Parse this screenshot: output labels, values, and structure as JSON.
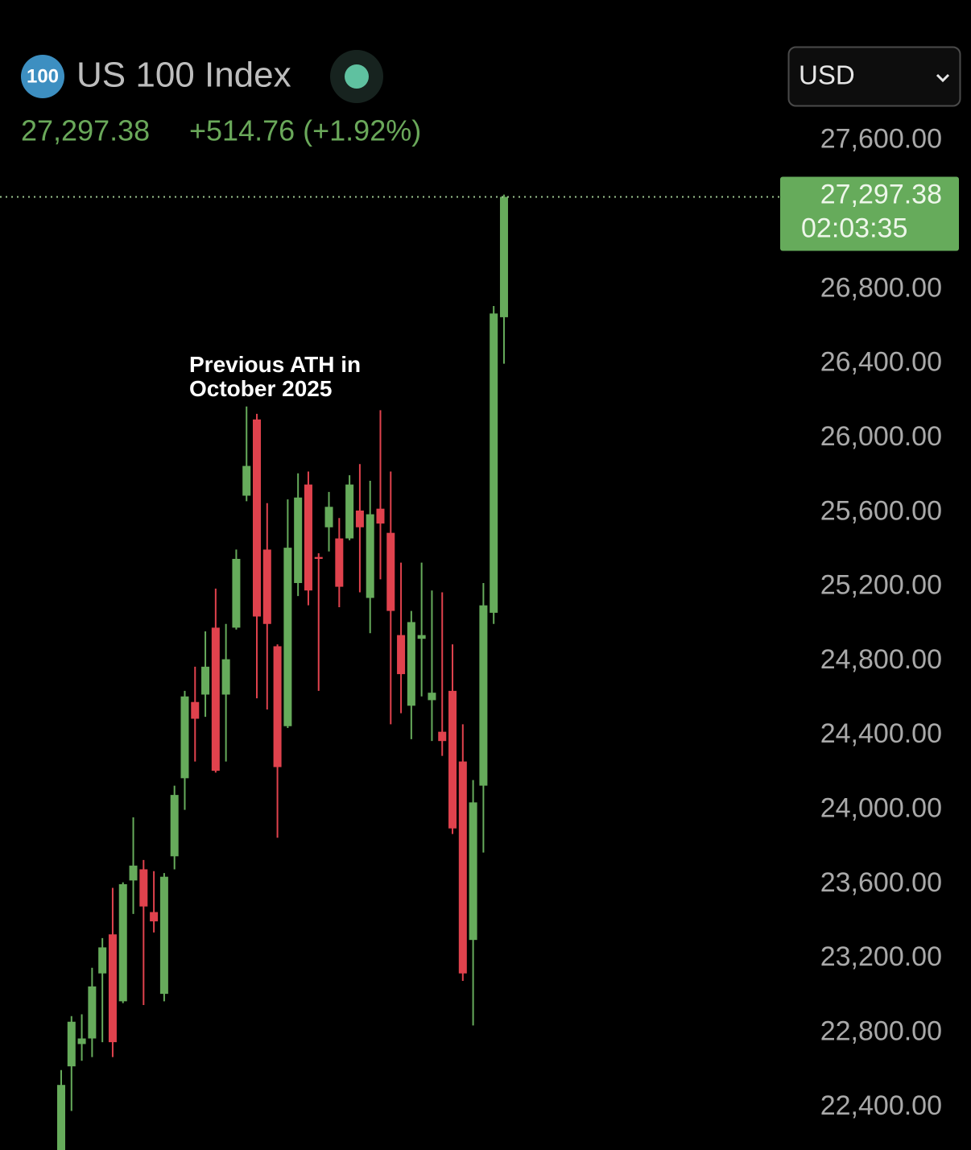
{
  "chart_data": {
    "type": "candlestick",
    "badge": "100",
    "title": "US 100 Index",
    "last_price": {
      "value": 27297.38,
      "label": "27,297.38"
    },
    "change_label": "+514.76 (+1.92%)",
    "countdown": "02:03:35",
    "currency": "USD",
    "annotation": [
      "Previous ATH in",
      "October 2025"
    ],
    "up_color": "#66ab5b",
    "down_color": "#e0424d",
    "categories": [
      null,
      null,
      null,
      null,
      null,
      null,
      null,
      null,
      null,
      null,
      null,
      null,
      null,
      null,
      null,
      null,
      null,
      null,
      null,
      null,
      null,
      null,
      null,
      null,
      null,
      null,
      null,
      null,
      null,
      null,
      null,
      null,
      null,
      null,
      null,
      null,
      null,
      null,
      null,
      null,
      null,
      null,
      null,
      null
    ],
    "open": [
      22170,
      22620,
      22740,
      22770,
      23120,
      23330,
      22970,
      23620,
      23680,
      23450,
      23010,
      23750,
      24170,
      24580,
      24620,
      24980,
      24620,
      24980,
      25690,
      26100,
      25400,
      24880,
      24450,
      25220,
      25750,
      25360,
      25520,
      25460,
      25460,
      25610,
      25140,
      25620,
      25490,
      24940,
      24560,
      24920,
      24590,
      24420,
      24640,
      24260,
      23300,
      24130,
      25060,
      26650
    ],
    "high": [
      22600,
      22890,
      22900,
      23150,
      23310,
      23580,
      23610,
      23960,
      23730,
      23670,
      23660,
      24130,
      24640,
      24770,
      24960,
      25190,
      25000,
      25400,
      26170,
      26130,
      25650,
      24890,
      25670,
      25810,
      25820,
      25380,
      25710,
      25570,
      25800,
      25860,
      25770,
      26150,
      25820,
      25330,
      25070,
      25330,
      25180,
      25170,
      24890,
      24460,
      24160,
      25220,
      26710,
      27310
    ],
    "low": [
      22100,
      22380,
      22650,
      22670,
      22750,
      22670,
      22960,
      23440,
      22950,
      23340,
      22970,
      23680,
      24000,
      24260,
      24500,
      24200,
      24260,
      24970,
      25660,
      24600,
      24540,
      23850,
      24440,
      25150,
      25100,
      24640,
      25390,
      25090,
      25450,
      25170,
      24950,
      25240,
      24460,
      24520,
      24380,
      24610,
      24370,
      24290,
      23870,
      23080,
      22840,
      23770,
      25000,
      26400
    ],
    "close": [
      22520,
      22860,
      22770,
      23050,
      23260,
      22750,
      23600,
      23700,
      23480,
      23400,
      23640,
      24080,
      24610,
      24490,
      24770,
      24210,
      24810,
      25350,
      25850,
      25040,
      25000,
      24230,
      25410,
      25680,
      25180,
      25350,
      25630,
      25200,
      25750,
      25520,
      25590,
      25540,
      25070,
      24730,
      25010,
      24940,
      24630,
      24370,
      23900,
      23120,
      24040,
      25100,
      26670,
      27297.38
    ],
    "ylim": [
      22170,
      27750
    ],
    "yticks": [
      {
        "value": 27600,
        "label": "27,600.00"
      },
      {
        "value": 26800,
        "label": "26,800.00"
      },
      {
        "value": 26400,
        "label": "26,400.00"
      },
      {
        "value": 26000,
        "label": "26,000.00"
      },
      {
        "value": 25600,
        "label": "25,600.00"
      },
      {
        "value": 25200,
        "label": "25,200.00"
      },
      {
        "value": 24800,
        "label": "24,800.00"
      },
      {
        "value": 24400,
        "label": "24,400.00"
      },
      {
        "value": 24000,
        "label": "24,000.00"
      },
      {
        "value": 23600,
        "label": "23,600.00"
      },
      {
        "value": 23200,
        "label": "23,200.00"
      },
      {
        "value": 22800,
        "label": "22,800.00"
      },
      {
        "value": 22400,
        "label": "22,400.00"
      }
    ]
  }
}
